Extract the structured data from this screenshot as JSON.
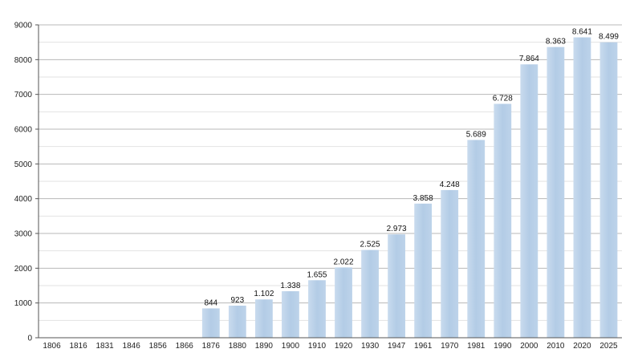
{
  "chart_data": {
    "type": "bar",
    "categories": [
      "1806",
      "1816",
      "1831",
      "1846",
      "1856",
      "1866",
      "1876",
      "1880",
      "1890",
      "1900",
      "1910",
      "1920",
      "1930",
      "1947",
      "1961",
      "1970",
      "1981",
      "1990",
      "2000",
      "2010",
      "2020",
      "2025"
    ],
    "values": [
      null,
      null,
      null,
      null,
      null,
      null,
      844,
      923,
      1102,
      1338,
      1655,
      2022,
      2525,
      2973,
      3858,
      4248,
      5689,
      6728,
      7864,
      8363,
      8641,
      8499
    ],
    "data_labels": [
      "",
      "",
      "",
      "",
      "",
      "",
      "844",
      "923",
      "1.102",
      "1.338",
      "1.655",
      "2.022",
      "2.525",
      "2.973",
      "3.858",
      "4.248",
      "5.689",
      "6.728",
      "7.864",
      "8.363",
      "8.641",
      "8.499"
    ],
    "title": "",
    "xlabel": "",
    "ylabel": "",
    "ylim": [
      0,
      9000
    ],
    "yticks": [
      "0",
      "1000",
      "2000",
      "3000",
      "4000",
      "5000",
      "6000",
      "7000",
      "8000",
      "9000"
    ],
    "grid": true,
    "bar_color": "#b3cce6"
  }
}
